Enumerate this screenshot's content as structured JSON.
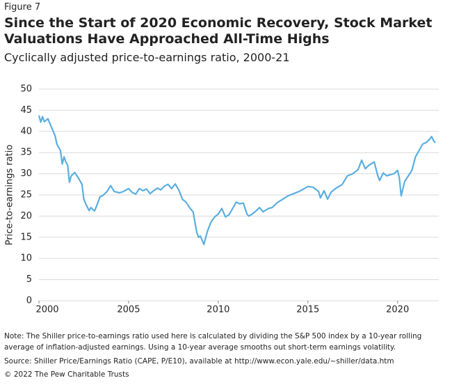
{
  "chart_data": {
    "type": "line",
    "figure_label": "Figure 7",
    "title": "Since the Start of 2020 Economic Recovery, Stock Market Valuations Have Approached All-Time Highs",
    "subtitle": "Cyclically adjusted price-to-earnings ratio, 2000-21",
    "y_label": "Price-to-earnings ratio",
    "note": "Note: The Shiller price-to-earnings ratio used here is calculated by dividing the S&P 500 index by a 10-year rolling average of inflation-adjusted earnings. Using a 10-year average smooths out short-term earnings volatility.",
    "source": "Source: Shiller Price/Earnings Ratio (CAPE, P/E10), available at http://www.econ.yale.edu/~shiller/data.htm",
    "copyright": "© 2022 The Pew Charitable Trusts",
    "color": "#5aaee0",
    "x": [
      2000,
      2000.1,
      2000.2,
      2000.3,
      2000.5,
      2000.7,
      2000.9,
      2001,
      2001.2,
      2001.3,
      2001.4,
      2001.5,
      2001.6,
      2001.7,
      2001.8,
      2002,
      2002.2,
      2002.4,
      2002.5,
      2002.6,
      2002.8,
      2002.9,
      2003.1,
      2003.2,
      2003.4,
      2003.6,
      2003.8,
      2004,
      2004.2,
      2004.5,
      2004.7,
      2005,
      2005.2,
      2005.4,
      2005.6,
      2005.8,
      2006,
      2006.2,
      2006.4,
      2006.6,
      2006.8,
      2007,
      2007.2,
      2007.4,
      2007.6,
      2007.8,
      2008,
      2008.2,
      2008.4,
      2008.6,
      2008.8,
      2008.9,
      2009,
      2009.2,
      2009.4,
      2009.6,
      2009.8,
      2010,
      2010.2,
      2010.4,
      2010.6,
      2010.8,
      2011,
      2011.2,
      2011.4,
      2011.6,
      2011.7,
      2011.9,
      2012.1,
      2012.3,
      2012.5,
      2012.8,
      2013,
      2013.3,
      2013.6,
      2013.9,
      2014.2,
      2014.5,
      2014.8,
      2015,
      2015.3,
      2015.6,
      2015.7,
      2015.9,
      2016.1,
      2016.3,
      2016.6,
      2016.9,
      2017.2,
      2017.5,
      2017.8,
      2018,
      2018.2,
      2018.4,
      2018.7,
      2018.9,
      2019,
      2019.2,
      2019.4,
      2019.6,
      2019.8,
      2020,
      2020.1,
      2020.2,
      2020.4,
      2020.6,
      2020.8,
      2021,
      2021.2,
      2021.4,
      2021.6,
      2021.8,
      2021.9,
      2022,
      2022.1
    ],
    "values": [
      43.8,
      42.2,
      43.5,
      42.3,
      43,
      41,
      39,
      37,
      35.5,
      32.3,
      34,
      32.8,
      32,
      28,
      29.5,
      30.3,
      29,
      27.5,
      24,
      23,
      21.3,
      22,
      21.2,
      22.2,
      24.5,
      25,
      25.8,
      27.2,
      25.8,
      25.5,
      25.8,
      26.5,
      25.6,
      25.2,
      26.5,
      26,
      26.4,
      25.3,
      26,
      26.6,
      26.2,
      27.1,
      27.5,
      26.5,
      27.6,
      26.2,
      24,
      23.3,
      22,
      21,
      16.2,
      15,
      15.3,
      13.3,
      16.5,
      18.6,
      19.8,
      20.5,
      21.8,
      19.8,
      20.3,
      21.8,
      23.3,
      22.9,
      23.1,
      20.5,
      20,
      20.5,
      21.2,
      22,
      21,
      21.8,
      22,
      23.2,
      24,
      24.8,
      25.3,
      25.8,
      26.5,
      27,
      26.8,
      25.8,
      24.3,
      26,
      24,
      25.7,
      26.7,
      27.4,
      29.5,
      30,
      31,
      33.2,
      31.2,
      32,
      32.8,
      29.5,
      28.4,
      30.2,
      29.5,
      29.8,
      30,
      30.8,
      29,
      24.8,
      28.2,
      29.5,
      30.8,
      34,
      35.5,
      37,
      37.4,
      38.2,
      38.8,
      37.9,
      37.3
    ],
    "xlim": [
      2000,
      2022.3
    ],
    "xticks": [
      2000,
      2005,
      2010,
      2015,
      2020
    ],
    "ylim": [
      0,
      50
    ],
    "yticks": [
      0,
      5,
      10,
      15,
      20,
      25,
      30,
      35,
      40,
      45,
      50
    ],
    "grid": true
  }
}
